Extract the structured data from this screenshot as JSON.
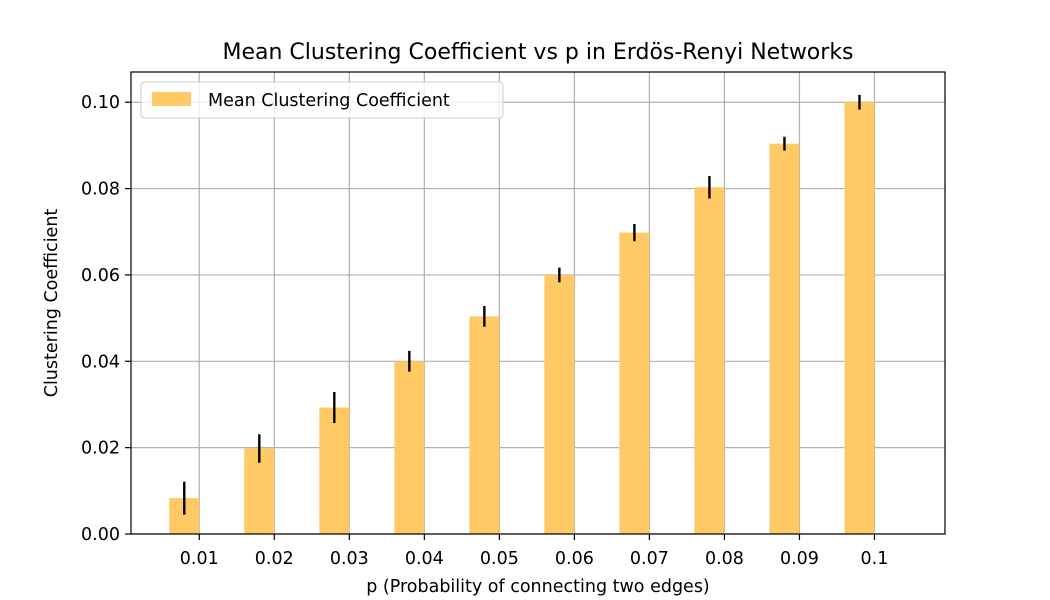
{
  "chart_data": {
    "type": "bar",
    "title": "Mean Clustering Coefficient vs p in Erdös-Renyi Networks",
    "xlabel": "p (Probability of connecting two edges)",
    "ylabel": "Clustering Coefficient",
    "categories": [
      "0.01",
      "0.02",
      "0.03",
      "0.04",
      "0.05",
      "0.06",
      "0.07",
      "0.08",
      "0.09",
      "0.1"
    ],
    "x": [
      0.01,
      0.02,
      0.03,
      0.04,
      0.05,
      0.06,
      0.07,
      0.08,
      0.09,
      0.1
    ],
    "series": [
      {
        "name": "Mean Clustering Coefficient",
        "values": [
          0.0083,
          0.0198,
          0.0293,
          0.04,
          0.0504,
          0.06,
          0.0698,
          0.0803,
          0.0904,
          0.1
        ],
        "errors": [
          0.0038,
          0.0033,
          0.0036,
          0.0024,
          0.0024,
          0.0017,
          0.002,
          0.0026,
          0.0016,
          0.0017
        ]
      }
    ],
    "ylim": [
      0,
      0.107
    ],
    "xlim": [
      0.0009,
      0.1094
    ],
    "yticks": [
      0.0,
      0.02,
      0.04,
      0.06,
      0.08,
      0.1
    ],
    "ytick_labels": [
      "0.00",
      "0.02",
      "0.04",
      "0.06",
      "0.08",
      "0.10"
    ],
    "grid": true,
    "legend_position": "top-left",
    "colors": {
      "bar": "#FFC966",
      "error": "#000000",
      "grid": "#b0b0b0",
      "axis": "#000000"
    }
  }
}
